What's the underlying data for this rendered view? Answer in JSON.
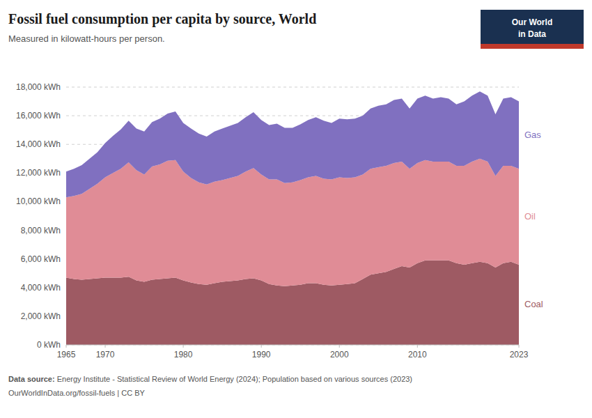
{
  "chart_data": {
    "type": "area",
    "stacked": true,
    "title": "Fossil fuel consumption per capita by source, World",
    "subtitle": "Measured in kilowatt-hours per person.",
    "annotations": [
      "Data source:",
      " Energy Institute - Statistical Review of World Energy (2024); Population based on various sources (2023)",
      "OurWorldInData.org/fossil-fuels | CC BY",
      "Our World",
      "in Data"
    ],
    "x": [
      1965,
      1966,
      1967,
      1968,
      1969,
      1970,
      1971,
      1972,
      1973,
      1974,
      1975,
      1976,
      1977,
      1978,
      1979,
      1980,
      1981,
      1982,
      1983,
      1984,
      1985,
      1986,
      1987,
      1988,
      1989,
      1990,
      1991,
      1992,
      1993,
      1994,
      1995,
      1996,
      1997,
      1998,
      1999,
      2000,
      2001,
      2002,
      2003,
      2004,
      2005,
      2006,
      2007,
      2008,
      2009,
      2010,
      2011,
      2012,
      2013,
      2014,
      2015,
      2016,
      2017,
      2018,
      2019,
      2020,
      2021,
      2022,
      2023
    ],
    "series": [
      {
        "name": "Coal",
        "color": "#9e5a63",
        "values": [
          4700,
          4600,
          4550,
          4600,
          4650,
          4700,
          4700,
          4700,
          4750,
          4500,
          4400,
          4550,
          4600,
          4650,
          4700,
          4500,
          4350,
          4250,
          4200,
          4300,
          4400,
          4450,
          4500,
          4600,
          4650,
          4500,
          4250,
          4150,
          4100,
          4150,
          4200,
          4300,
          4300,
          4200,
          4150,
          4200,
          4250,
          4300,
          4600,
          4900,
          5000,
          5100,
          5300,
          5500,
          5400,
          5700,
          5900,
          5900,
          5900,
          5900,
          5700,
          5600,
          5700,
          5800,
          5700,
          5400,
          5700,
          5800,
          5600
        ]
      },
      {
        "name": "Oil",
        "color": "#e08c96",
        "values": [
          5600,
          5800,
          6000,
          6300,
          6600,
          7000,
          7300,
          7600,
          8000,
          7700,
          7500,
          7900,
          8000,
          8200,
          8200,
          7600,
          7300,
          7100,
          7000,
          7100,
          7100,
          7200,
          7300,
          7500,
          7700,
          7400,
          7300,
          7400,
          7200,
          7200,
          7300,
          7400,
          7500,
          7400,
          7400,
          7500,
          7400,
          7400,
          7300,
          7400,
          7400,
          7400,
          7400,
          7300,
          6900,
          7000,
          7000,
          6900,
          6900,
          6900,
          6800,
          6900,
          7100,
          7200,
          7100,
          6400,
          6800,
          6700,
          6700
        ]
      },
      {
        "name": "Gas",
        "color": "#8070c0",
        "values": [
          1800,
          1900,
          2000,
          2100,
          2200,
          2400,
          2600,
          2750,
          2900,
          2900,
          3000,
          3100,
          3200,
          3300,
          3400,
          3400,
          3450,
          3400,
          3350,
          3500,
          3600,
          3650,
          3700,
          3800,
          3900,
          3800,
          3800,
          3900,
          3850,
          3800,
          3900,
          4000,
          4100,
          4050,
          3950,
          4100,
          4100,
          4100,
          4100,
          4200,
          4300,
          4300,
          4400,
          4400,
          4200,
          4500,
          4500,
          4400,
          4500,
          4400,
          4300,
          4500,
          4600,
          4700,
          4600,
          4300,
          4700,
          4800,
          4700
        ]
      }
    ],
    "xlim": [
      1965,
      2023
    ],
    "xticks": [
      1965,
      1970,
      1980,
      1990,
      2000,
      2010,
      2023
    ],
    "ylim": [
      0,
      18000
    ],
    "yticks": [
      {
        "value": 0,
        "label": "0 kWh"
      },
      {
        "value": 2000,
        "label": "2,000 kWh"
      },
      {
        "value": 4000,
        "label": "4,000 kWh"
      },
      {
        "value": 6000,
        "label": "6,000 kWh"
      },
      {
        "value": 8000,
        "label": "8,000 kWh"
      },
      {
        "value": 10000,
        "label": "10,000 kWh"
      },
      {
        "value": 12000,
        "label": "12,000 kWh"
      },
      {
        "value": 14000,
        "label": "14,000 kWh"
      },
      {
        "value": 16000,
        "label": "16,000 kWh"
      },
      {
        "value": 18000,
        "label": "18,000 kWh"
      }
    ],
    "grid": true
  }
}
